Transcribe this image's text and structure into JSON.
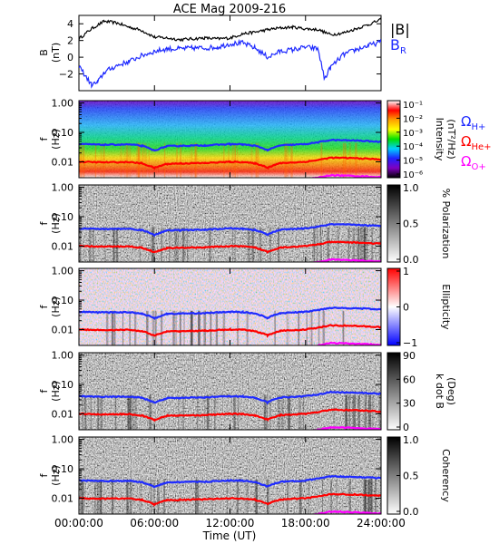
{
  "chart_data": [
    {
      "type": "line",
      "title": "ACE Mag 2009-216",
      "ylabel": [
        "B",
        "(nT)"
      ],
      "yticks": [
        "4",
        "2",
        "0",
        "−2"
      ],
      "ylim": [
        -4,
        5
      ],
      "series": [
        {
          "name": "|B|",
          "color": "#000000",
          "x": [
            0,
            1,
            2,
            3,
            4,
            5,
            6,
            7,
            8,
            9,
            10,
            11,
            12,
            13,
            14,
            15,
            16,
            17,
            18,
            19,
            20,
            21,
            22,
            23,
            24
          ],
          "values": [
            2.2,
            3.4,
            4.3,
            4.1,
            3.6,
            3.2,
            2.4,
            2.3,
            2.1,
            2.2,
            2.3,
            2.2,
            2.3,
            2.8,
            3.0,
            3.3,
            3.5,
            3.6,
            3.4,
            3.3,
            2.7,
            2.9,
            3.4,
            3.9,
            4.5
          ]
        },
        {
          "name": "B",
          "subscript": "R",
          "color": "#1f2bff",
          "x": [
            0,
            0.5,
            1,
            1.5,
            2,
            3,
            4,
            5,
            6,
            7,
            8,
            9,
            10,
            11,
            12,
            13,
            14,
            15,
            16,
            17,
            18,
            19,
            19.5,
            20,
            21,
            22,
            23,
            24
          ],
          "values": [
            -1.0,
            -2.2,
            -3.3,
            -3.0,
            -1.8,
            -1.0,
            -0.5,
            0.2,
            0.7,
            1.0,
            1.0,
            1.1,
            1.1,
            1.2,
            1.6,
            1.7,
            1.1,
            0.0,
            0.7,
            0.9,
            1.2,
            1.0,
            -2.6,
            -1.2,
            0.3,
            0.9,
            1.4,
            1.8
          ]
        }
      ]
    },
    {
      "type": "heatmap",
      "ylabel": [
        "f",
        "(Hz)"
      ],
      "yticks": [
        "1.00",
        "0.10",
        "0.01"
      ],
      "scale": "log",
      "colorbar": {
        "label": [
          "Intensity",
          "(nT²/Hz)"
        ],
        "ticks": [
          "10⁻¹",
          "10⁻²",
          "10⁻³",
          "10⁻⁴",
          "10⁻⁵",
          "10⁻⁶"
        ],
        "colors": [
          "#ffffff",
          "#ff0000",
          "#ffa000",
          "#ffff00",
          "#00e000",
          "#00d0ff",
          "#2020ff",
          "#8000c0",
          "#000000"
        ]
      },
      "gyro_labels": [
        {
          "sym": "Ω",
          "sub": "H+",
          "color": "#1f2bff"
        },
        {
          "sym": "Ω",
          "sub": "He+",
          "color": "#ff0000"
        },
        {
          "sym": "Ω",
          "sub": "O+",
          "color": "#ff00ff"
        }
      ]
    },
    {
      "type": "heatmap",
      "ylabel": [
        "f",
        "(Hz)"
      ],
      "yticks": [
        "1.00",
        "0.10",
        "0.01"
      ],
      "colorbar": {
        "label": [
          "% Polarization"
        ],
        "ticks": [
          "1.0",
          "0.5",
          "0.0"
        ],
        "colors": [
          "#000000",
          "#ffffff"
        ]
      }
    },
    {
      "type": "heatmap",
      "ylabel": [
        "f",
        "(Hz)"
      ],
      "yticks": [
        "1.00",
        "0.10",
        "0.01"
      ],
      "colorbar": {
        "label": [
          "Ellipticity"
        ],
        "ticks": [
          "1",
          "0",
          "−1"
        ],
        "colors": [
          "#ff0000",
          "#ffffff",
          "#0000ff"
        ]
      }
    },
    {
      "type": "heatmap",
      "ylabel": [
        "f",
        "(Hz)"
      ],
      "yticks": [
        "1.00",
        "0.10",
        "0.01"
      ],
      "colorbar": {
        "label": [
          "k dot B",
          "(Deg)"
        ],
        "ticks": [
          "90",
          "60",
          "30",
          "0"
        ],
        "colors": [
          "#000000",
          "#ffffff"
        ]
      }
    },
    {
      "type": "heatmap",
      "ylabel": [
        "f",
        "(Hz)"
      ],
      "yticks": [
        "1.00",
        "0.10",
        "0.01"
      ],
      "colorbar": {
        "label": [
          "Coherency"
        ],
        "ticks": [
          "1.0",
          "0.5",
          "0.0"
        ],
        "colors": [
          "#000000",
          "#ffffff"
        ]
      }
    }
  ],
  "xaxis": {
    "label": "Time (UT)",
    "ticks": [
      "00:00:00",
      "06:00:00",
      "12:00:00",
      "18:00:00",
      "24:00:00"
    ],
    "xlim": [
      0,
      24
    ]
  },
  "gyro_lines": {
    "H+": {
      "color": "#1f2bff",
      "x": [
        0,
        2,
        4,
        5,
        6,
        7,
        8,
        10,
        12,
        13,
        14,
        15,
        16,
        18,
        19,
        20,
        22,
        24
      ],
      "hz": [
        0.04,
        0.038,
        0.039,
        0.035,
        0.024,
        0.034,
        0.035,
        0.036,
        0.04,
        0.039,
        0.035,
        0.025,
        0.036,
        0.04,
        0.046,
        0.055,
        0.053,
        0.048
      ]
    },
    "He+": {
      "color": "#ff0000",
      "x": [
        0,
        2,
        4,
        5,
        6,
        7,
        8,
        10,
        12,
        13,
        14,
        15,
        16,
        18,
        19,
        20,
        22,
        24
      ],
      "hz": [
        0.01,
        0.0096,
        0.0098,
        0.0088,
        0.0062,
        0.0085,
        0.0088,
        0.0091,
        0.01,
        0.0098,
        0.0088,
        0.0064,
        0.009,
        0.01,
        0.0115,
        0.0138,
        0.0133,
        0.012
      ]
    },
    "O+": {
      "color": "#ff00ff",
      "x": [
        0,
        2,
        4,
        5,
        6,
        7,
        8,
        10,
        12,
        13,
        14,
        15,
        16,
        18,
        19,
        20,
        22,
        24
      ],
      "hz": [
        0.0026,
        0.0024,
        0.0025,
        0.0022,
        0.0016,
        0.0021,
        0.0022,
        0.0023,
        0.0025,
        0.0025,
        0.0022,
        0.0016,
        0.0023,
        0.0025,
        0.0029,
        0.0035,
        0.0033,
        0.003
      ]
    }
  }
}
